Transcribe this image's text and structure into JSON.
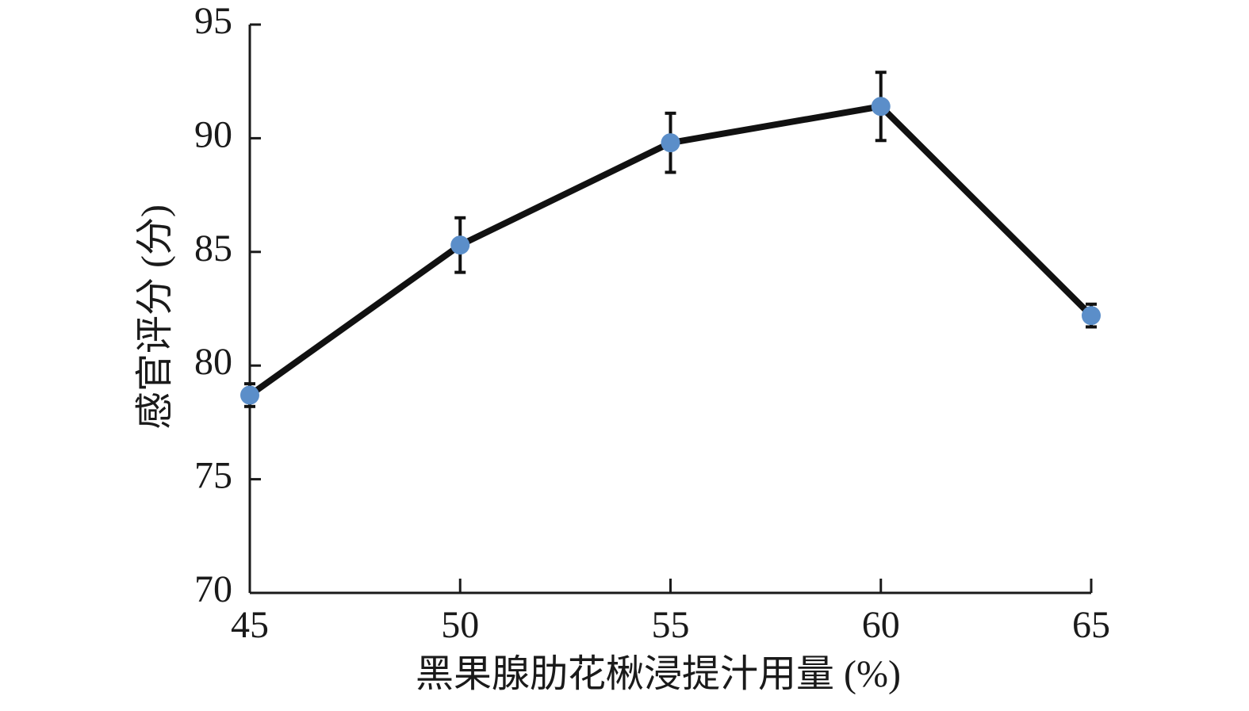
{
  "chart_data": {
    "type": "line",
    "x_label": "黑果腺肋花楸浸提汁用量 (%)",
    "y_label": "感官评分 (分)",
    "x": [
      45,
      50,
      55,
      60,
      65
    ],
    "values": [
      78.7,
      85.3,
      89.8,
      91.4,
      82.2
    ],
    "errors": [
      0.5,
      1.2,
      1.3,
      1.5,
      0.5
    ],
    "color": "#111111",
    "marker_color": "#5b8ec9",
    "xlim": [
      45,
      65
    ],
    "xticks": [
      45,
      50,
      55,
      60,
      65
    ],
    "ylim": [
      70,
      95
    ],
    "yticks": [
      70,
      75,
      80,
      85,
      90,
      95
    ]
  }
}
